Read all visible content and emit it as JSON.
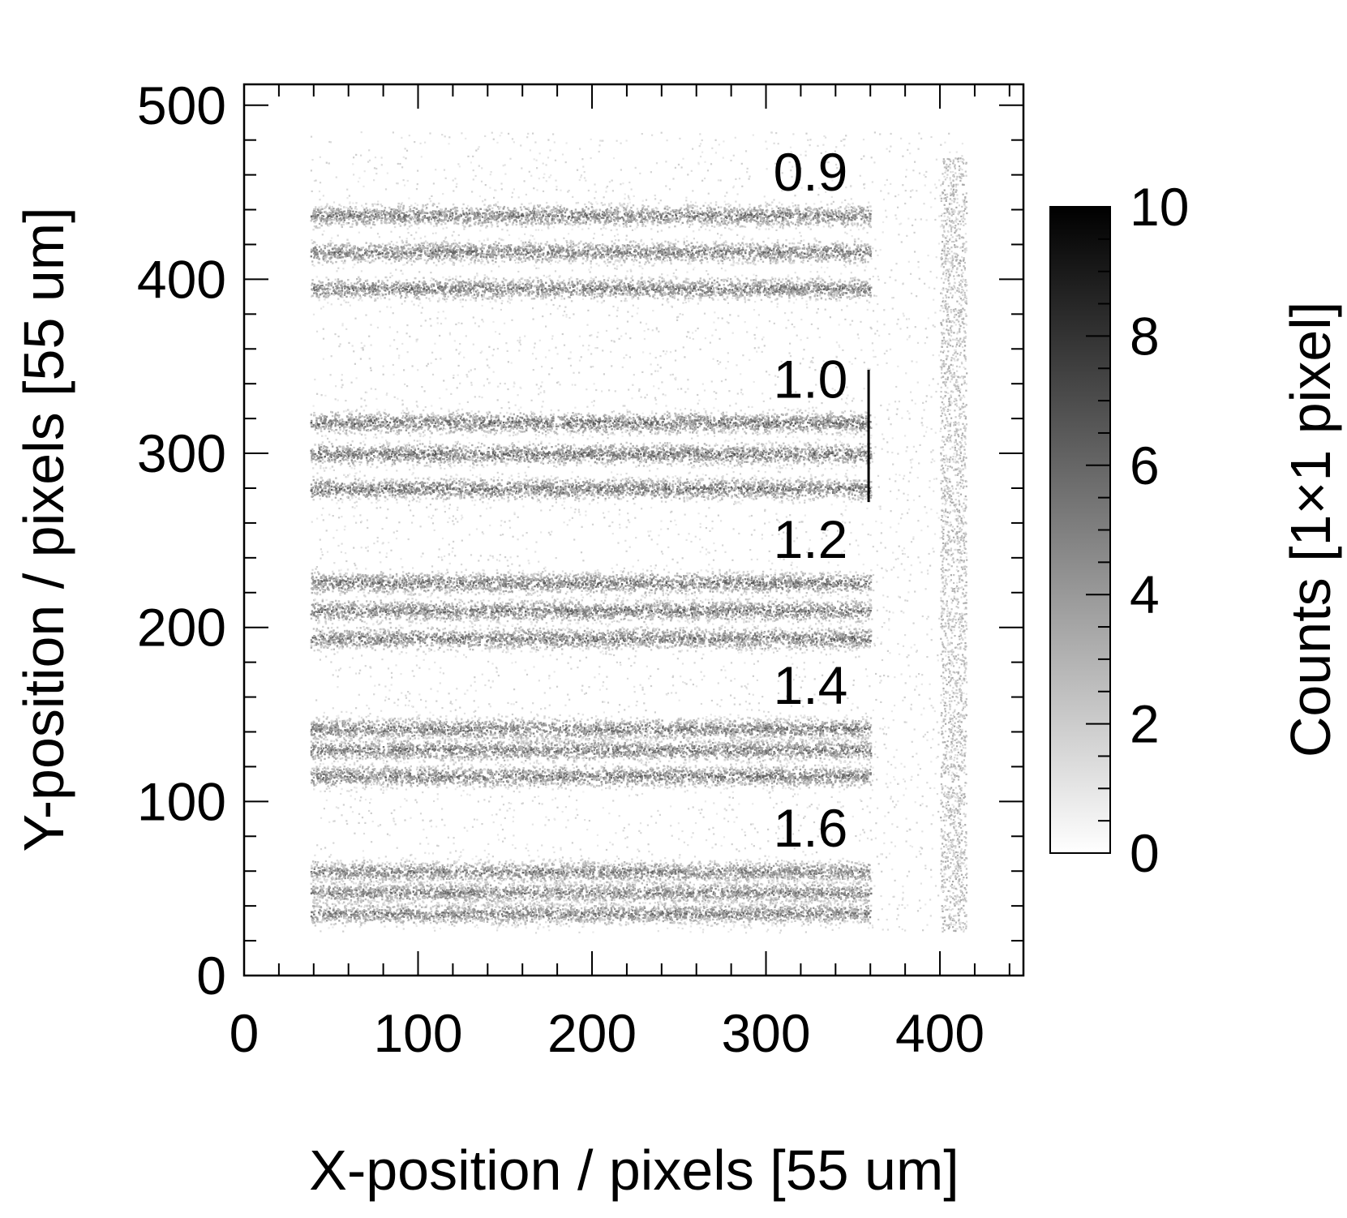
{
  "chart_data": {
    "type": "heatmap",
    "xlabel": "X-position / pixels [55 um]",
    "ylabel": "Y-position / pixels [55 um]",
    "zlabel": "Counts [1×1 pixel]",
    "xlim": [
      0,
      448
    ],
    "ylim": [
      0,
      512
    ],
    "zlim": [
      0,
      10
    ],
    "x_ticks": [
      "0",
      "100",
      "200",
      "300",
      "400"
    ],
    "y_ticks": [
      "0",
      "100",
      "200",
      "300",
      "400",
      "500"
    ],
    "z_ticks": [
      "0",
      "2",
      "4",
      "6",
      "8",
      "10"
    ],
    "colormap": [
      "#ffffff",
      "#000000"
    ],
    "grid": false,
    "region": {
      "x": [
        38,
        360
      ],
      "y": [
        25,
        485
      ],
      "background_counts": 0.8
    },
    "stripe_groups": [
      {
        "label": "0.9",
        "stripe_y": [
          437,
          416,
          395
        ],
        "counts": 6.8
      },
      {
        "label": "1.0",
        "stripe_y": [
          318,
          300,
          280
        ],
        "counts": 7.2
      },
      {
        "label": "1.2",
        "stripe_y": [
          226,
          210,
          194
        ],
        "counts": 7.0
      },
      {
        "label": "1.4",
        "stripe_y": [
          142,
          130,
          115
        ],
        "counts": 6.9
      },
      {
        "label": "1.6",
        "stripe_y": [
          60,
          48,
          36
        ],
        "counts": 6.5
      }
    ],
    "features": {
      "edge_band": {
        "x": [
          400,
          415
        ],
        "y": [
          25,
          470
        ],
        "counts": 3.5
      },
      "hot_column": {
        "x": 359,
        "y": [
          272,
          348
        ],
        "counts": 10
      }
    }
  }
}
